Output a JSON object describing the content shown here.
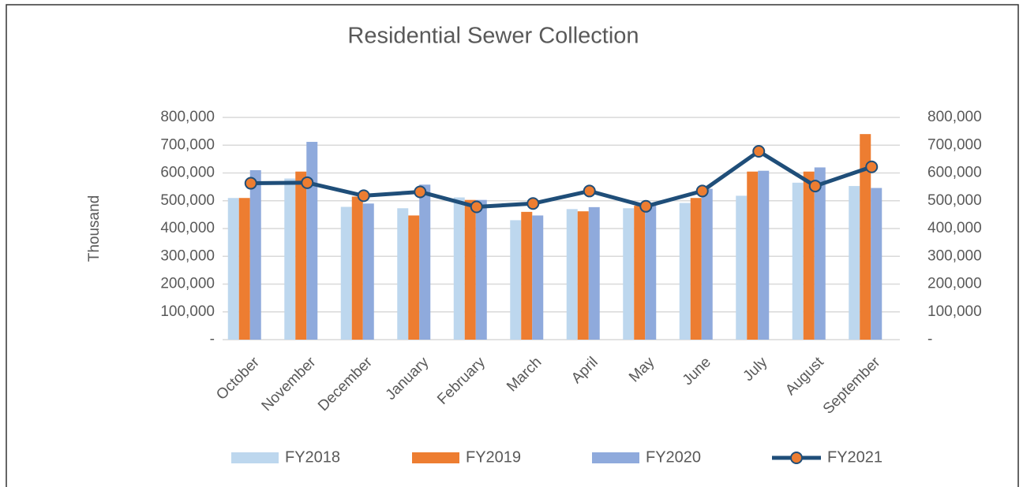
{
  "chart_data": {
    "type": "bar",
    "title": "Residential Sewer Collection",
    "y_label": "Thousand",
    "categories": [
      "October",
      "November",
      "December",
      "January",
      "February",
      "March",
      "April",
      "May",
      "June",
      "July",
      "August",
      "September"
    ],
    "series": [
      {
        "name": "FY2018",
        "type": "bar",
        "color": "#bdd7ee",
        "values": [
          510000,
          580000,
          478000,
          473000,
          512000,
          430000,
          470000,
          473000,
          492000,
          518000,
          565000,
          553000
        ]
      },
      {
        "name": "FY2019",
        "type": "bar",
        "color": "#ed7d31",
        "values": [
          510000,
          605000,
          515000,
          447000,
          503000,
          460000,
          462000,
          482000,
          510000,
          605000,
          605000,
          740000
        ]
      },
      {
        "name": "FY2020",
        "type": "bar",
        "color": "#8faadc",
        "values": [
          610000,
          712000,
          490000,
          558000,
          503000,
          447000,
          477000,
          490000,
          543000,
          608000,
          620000,
          546000
        ]
      },
      {
        "name": "FY2021",
        "type": "line",
        "axis": "y2",
        "color": "#1f4e79",
        "marker_color": "#ed7d31",
        "values": [
          563000,
          565000,
          518000,
          532000,
          478000,
          490000,
          535000,
          480000,
          535000,
          678000,
          553000,
          622000
        ]
      }
    ],
    "ylim": [
      0,
      800000
    ],
    "yticks": [
      {
        "value": 0,
        "label": "-"
      },
      {
        "value": 100000,
        "label": "100,000"
      },
      {
        "value": 200000,
        "label": "200,000"
      },
      {
        "value": 300000,
        "label": "300,000"
      },
      {
        "value": 400000,
        "label": "400,000"
      },
      {
        "value": 500000,
        "label": "500,000"
      },
      {
        "value": 600000,
        "label": "600,000"
      },
      {
        "value": 700000,
        "label": "700,000"
      },
      {
        "value": 800000,
        "label": "800,000"
      }
    ],
    "y2lim": [
      0,
      800000
    ],
    "y2ticks": [
      {
        "value": 0,
        "label": "-"
      },
      {
        "value": 100000,
        "label": "100,000"
      },
      {
        "value": 200000,
        "label": "200,000"
      },
      {
        "value": 300000,
        "label": "300,000"
      },
      {
        "value": 400000,
        "label": "400,000"
      },
      {
        "value": 500000,
        "label": "500,000"
      },
      {
        "value": 600000,
        "label": "600,000"
      },
      {
        "value": 700000,
        "label": "700,000"
      },
      {
        "value": 800000,
        "label": "800,000"
      }
    ],
    "grid": true,
    "legend": "bottom"
  }
}
